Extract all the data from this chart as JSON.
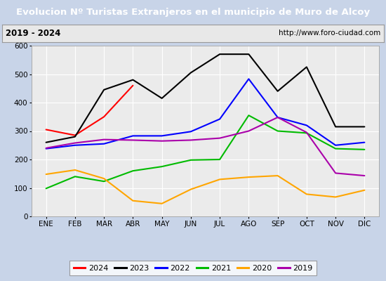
{
  "title": "Evolucion Nº Turistas Extranjeros en el municipio de Muro de Alcoy",
  "subtitle_left": "2019 - 2024",
  "subtitle_right": "http://www.foro-ciudad.com",
  "x_labels": [
    "ENE",
    "FEB",
    "MAR",
    "ABR",
    "MAY",
    "JUN",
    "JUL",
    "AGO",
    "SEP",
    "OCT",
    "NOV",
    "DIC"
  ],
  "ylim": [
    0,
    600
  ],
  "yticks": [
    0,
    100,
    200,
    300,
    400,
    500,
    600
  ],
  "series": {
    "2024": {
      "color": "#ff0000",
      "data": [
        305,
        285,
        350,
        460,
        null,
        null,
        null,
        null,
        null,
        null,
        null,
        null
      ]
    },
    "2023": {
      "color": "#000000",
      "data": [
        260,
        280,
        445,
        480,
        415,
        505,
        570,
        570,
        440,
        525,
        315,
        315
      ]
    },
    "2022": {
      "color": "#0000ff",
      "data": [
        238,
        250,
        255,
        283,
        283,
        298,
        342,
        483,
        348,
        320,
        250,
        260
      ]
    },
    "2021": {
      "color": "#00bb00",
      "data": [
        98,
        140,
        123,
        160,
        175,
        198,
        200,
        355,
        300,
        293,
        238,
        235
      ]
    },
    "2020": {
      "color": "#ffa500",
      "data": [
        148,
        163,
        133,
        55,
        45,
        95,
        130,
        138,
        143,
        78,
        68,
        92
      ]
    },
    "2019": {
      "color": "#aa00aa",
      "data": [
        240,
        258,
        270,
        268,
        265,
        268,
        275,
        300,
        348,
        295,
        152,
        143
      ]
    }
  },
  "title_bg_color": "#5b8dd9",
  "title_font_color": "#ffffff",
  "subtitle_bg_color": "#e8e8e8",
  "plot_bg_color": "#ebebeb",
  "outer_bg_color": "#c8d4e8",
  "grid_color": "#ffffff",
  "legend_order": [
    "2024",
    "2023",
    "2022",
    "2021",
    "2020",
    "2019"
  ]
}
